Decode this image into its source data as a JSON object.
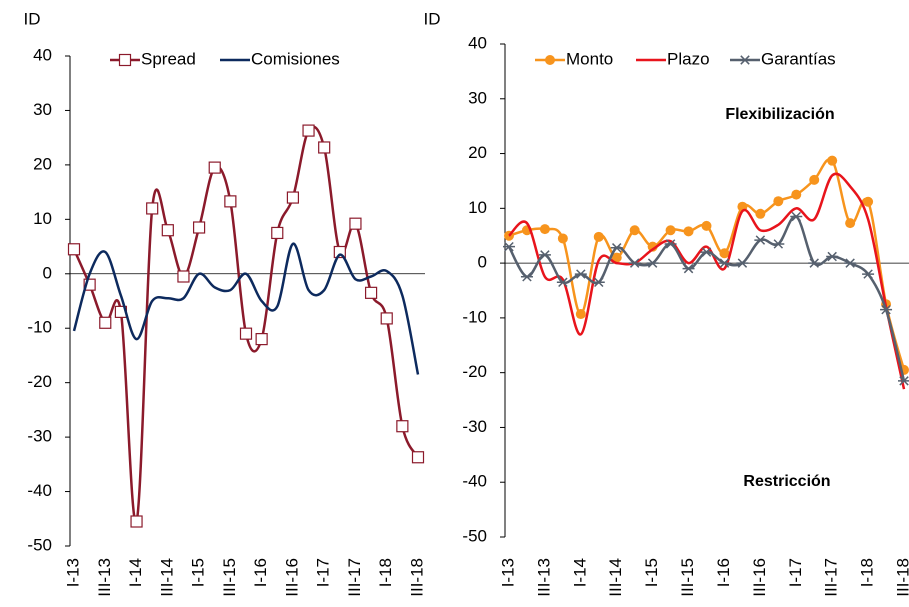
{
  "chart_data": [
    {
      "type": "line",
      "y_label": "ID",
      "categories": [
        "I-13",
        null,
        "III-13",
        null,
        "I-14",
        null,
        "III-14",
        null,
        "I-15",
        null,
        "III-15",
        null,
        "I-16",
        null,
        "III-16",
        null,
        "I-17",
        null,
        "III-17",
        null,
        "I-18",
        null,
        "III-18"
      ],
      "ylim": [
        -50,
        40
      ],
      "yticks": [
        -50,
        -40,
        -30,
        -20,
        -10,
        0,
        10,
        20,
        30,
        40
      ],
      "series": [
        {
          "name": "Spread",
          "color": "#8b1a2b",
          "marker": "square",
          "values": [
            4.5,
            -2,
            -9,
            -7,
            -45.5,
            12,
            8,
            -0.5,
            8.5,
            19.5,
            13.3,
            -11,
            -12,
            7.5,
            14,
            26.3,
            23.2,
            4,
            9.2,
            -3.5,
            -8.2,
            -28,
            -33.7
          ]
        },
        {
          "name": "Comisiones",
          "color": "#0d2a5e",
          "marker": "none",
          "values": [
            -10.5,
            0,
            4,
            -4,
            -12,
            -5,
            -4.5,
            -4.5,
            0,
            -2.5,
            -3,
            0,
            -5,
            -6,
            5.5,
            -3,
            -3,
            3.5,
            -1,
            -0.5,
            0.5,
            -4,
            -18.5
          ]
        }
      ]
    },
    {
      "type": "line",
      "y_label": "ID",
      "categories": [
        "I-13",
        null,
        "III-13",
        null,
        "I-14",
        null,
        "III-14",
        null,
        "I-15",
        null,
        "III-15",
        null,
        "I-16",
        null,
        "III-16",
        null,
        "I-17",
        null,
        "III-17",
        null,
        "I-18",
        null,
        "III-18"
      ],
      "ylim": [
        -50,
        40
      ],
      "yticks": [
        -50,
        -40,
        -30,
        -20,
        -10,
        0,
        10,
        20,
        30,
        40
      ],
      "annotations": [
        "Flexibilización",
        "Restricción"
      ],
      "series": [
        {
          "name": "Monto",
          "color": "#f7941d",
          "marker": "circle",
          "values": [
            5,
            6,
            6.2,
            4.5,
            -9.3,
            4.8,
            1,
            6,
            3,
            6,
            5.8,
            6.8,
            1.8,
            10.3,
            9,
            11.3,
            12.5,
            15.2,
            18.7,
            7.3,
            11.2,
            -7.5,
            -19.5
          ]
        },
        {
          "name": "Plazo",
          "color": "#e8141c",
          "marker": "none",
          "values": [
            5,
            7.3,
            -2.5,
            -3,
            -13,
            0.5,
            0,
            0,
            2.5,
            4,
            0,
            3,
            -1,
            9.5,
            6,
            7,
            10,
            8,
            16,
            14,
            8,
            -8,
            -23
          ]
        },
        {
          "name": "Garantías",
          "color": "#56606e",
          "marker": "star",
          "values": [
            3,
            -2.5,
            1.5,
            -3.5,
            -2,
            -3.5,
            2.8,
            0,
            0,
            3.5,
            -1,
            2,
            0,
            0,
            4.2,
            3.5,
            8.5,
            0,
            1.2,
            0,
            -2,
            -8.5,
            -21.5
          ]
        }
      ]
    }
  ]
}
